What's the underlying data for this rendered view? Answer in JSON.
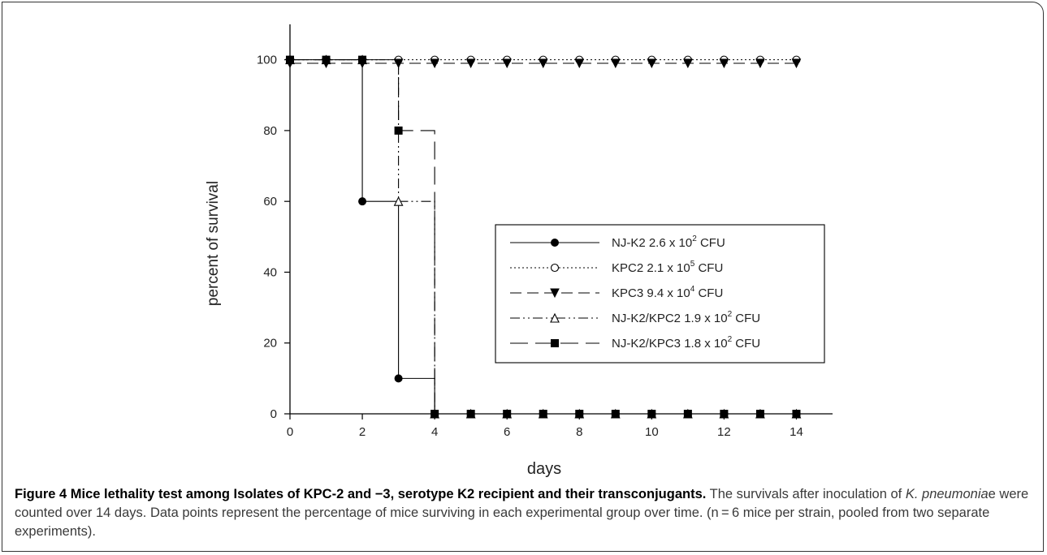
{
  "chart_data": {
    "type": "line",
    "step": true,
    "xlabel": "days",
    "ylabel": "percent of survival",
    "xlim": [
      0,
      15
    ],
    "ylim": [
      0,
      110
    ],
    "xticks": [
      0,
      2,
      4,
      6,
      8,
      10,
      12,
      14
    ],
    "yticks": [
      0,
      20,
      40,
      60,
      80,
      100
    ],
    "grid": false,
    "legend_position": "center-right",
    "series": [
      {
        "name": "NJ-K2",
        "dose_prefix": "2.6 x 10",
        "dose_exp": "2",
        "dose_suffix": " CFU",
        "marker": "filled-circle",
        "line": "solid",
        "x": [
          0,
          1,
          2,
          3,
          4,
          5,
          6,
          7,
          8,
          9,
          10,
          11,
          12,
          13,
          14
        ],
        "y": [
          100,
          100,
          60,
          10,
          0,
          0,
          0,
          0,
          0,
          0,
          0,
          0,
          0,
          0,
          0
        ]
      },
      {
        "name": "KPC2",
        "dose_prefix": "2.1 x 10",
        "dose_exp": "5",
        "dose_suffix": " CFU",
        "marker": "open-circle",
        "line": "dotted",
        "x": [
          0,
          1,
          2,
          3,
          4,
          5,
          6,
          7,
          8,
          9,
          10,
          11,
          12,
          13,
          14
        ],
        "y": [
          100,
          100,
          100,
          100,
          100,
          100,
          100,
          100,
          100,
          100,
          100,
          100,
          100,
          100,
          100
        ]
      },
      {
        "name": "KPC3",
        "dose_prefix": "9.4 x 10",
        "dose_exp": "4",
        "dose_suffix": " CFU",
        "marker": "filled-triangle-down",
        "line": "dashed",
        "x": [
          0,
          1,
          2,
          3,
          4,
          5,
          6,
          7,
          8,
          9,
          10,
          11,
          12,
          13,
          14
        ],
        "y": [
          99,
          99,
          99,
          99,
          99,
          99,
          99,
          99,
          99,
          99,
          99,
          99,
          99,
          99,
          99
        ]
      },
      {
        "name": "NJ-K2/KPC2",
        "dose_prefix": "1.9 x 10",
        "dose_exp": "2",
        "dose_suffix": " CFU",
        "marker": "open-triangle-up",
        "line": "dash-dot-dot",
        "x": [
          0,
          1,
          2,
          3,
          4,
          5,
          6,
          7,
          8,
          9,
          10,
          11,
          12,
          13,
          14
        ],
        "y": [
          100,
          100,
          100,
          60,
          0,
          0,
          0,
          0,
          0,
          0,
          0,
          0,
          0,
          0,
          0
        ]
      },
      {
        "name": "NJ-K2/KPC3",
        "dose_prefix": "1.8 x 10",
        "dose_exp": "2",
        "dose_suffix": " CFU",
        "marker": "filled-square",
        "line": "long-dash",
        "x": [
          0,
          1,
          2,
          3,
          4,
          5,
          6,
          7,
          8,
          9,
          10,
          11,
          12,
          13,
          14
        ],
        "y": [
          100,
          100,
          100,
          80,
          0,
          0,
          0,
          0,
          0,
          0,
          0,
          0,
          0,
          0,
          0
        ]
      }
    ]
  },
  "caption": {
    "label": "Figure 4 Mice lethality test among Isolates of KPC-2 and −3, serotype K2 recipient and their transconjugants.",
    "text_before_italic": " The survivals after inoculation of ",
    "italic": "K. pneumonia",
    "text_after_italic": "e were counted over 14 days. Data points represent the percentage of mice surviving in each experimental group over time. (n = 6 mice per strain, pooled from two separate experiments)."
  }
}
